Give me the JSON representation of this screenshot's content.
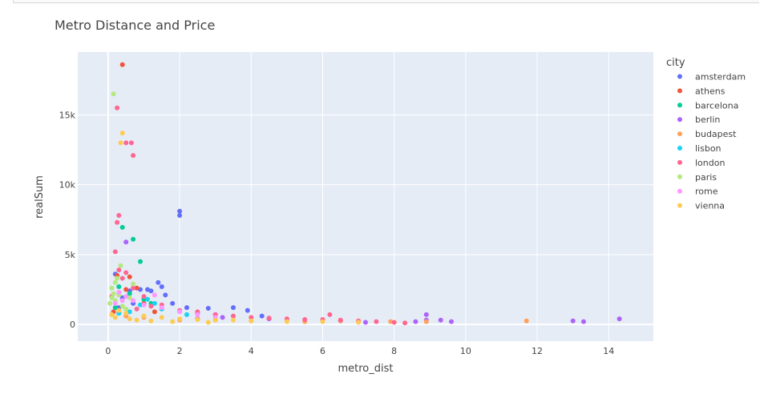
{
  "chart_data": {
    "type": "scatter",
    "title": "Metro Distance and Price",
    "xlabel": "metro_dist",
    "ylabel": "realSum",
    "xlim": [
      -0.85,
      15.25
    ],
    "ylim": [
      -1200,
      19500
    ],
    "xticks": [
      0,
      2,
      4,
      6,
      8,
      10,
      12,
      14
    ],
    "yticks": [
      0,
      5000,
      10000,
      15000
    ],
    "ytick_labels": [
      "0",
      "5k",
      "10k",
      "15k"
    ],
    "grid": true,
    "legend": {
      "title": "city",
      "position": "right"
    },
    "series": [
      {
        "name": "amsterdam",
        "color": "#636efa",
        "points": [
          [
            2.0,
            8100
          ],
          [
            2.0,
            7800
          ],
          [
            1.4,
            3000
          ],
          [
            1.5,
            2700
          ],
          [
            0.2,
            3600
          ],
          [
            0.9,
            2500
          ],
          [
            1.1,
            2500
          ],
          [
            1.2,
            2400
          ],
          [
            1.6,
            2100
          ],
          [
            1.8,
            1500
          ],
          [
            2.2,
            1200
          ],
          [
            2.8,
            1150
          ],
          [
            3.5,
            1200
          ],
          [
            3.9,
            1000
          ],
          [
            1.0,
            1800
          ],
          [
            0.7,
            1500
          ],
          [
            0.4,
            1900
          ],
          [
            0.6,
            2400
          ],
          [
            2.5,
            800
          ],
          [
            3.0,
            700
          ],
          [
            4.3,
            600
          ],
          [
            0.3,
            1200
          ]
        ]
      },
      {
        "name": "athens",
        "color": "#ef553b",
        "points": [
          [
            0.4,
            18600
          ],
          [
            0.25,
            3500
          ],
          [
            0.6,
            3400
          ],
          [
            0.8,
            2600
          ],
          [
            0.5,
            2500
          ],
          [
            1.0,
            1500
          ],
          [
            1.3,
            900
          ],
          [
            0.15,
            900
          ],
          [
            0.3,
            800
          ]
        ]
      },
      {
        "name": "barcelona",
        "color": "#00cc96",
        "points": [
          [
            0.4,
            6950
          ],
          [
            0.7,
            6100
          ],
          [
            0.9,
            4500
          ],
          [
            0.3,
            2700
          ],
          [
            0.6,
            2200
          ],
          [
            1.0,
            1800
          ],
          [
            1.2,
            1500
          ],
          [
            0.2,
            1200
          ]
        ]
      },
      {
        "name": "berlin",
        "color": "#ab63fa",
        "points": [
          [
            0.5,
            5900
          ],
          [
            14.3,
            400
          ],
          [
            13.3,
            200
          ],
          [
            13.0,
            250
          ],
          [
            9.6,
            200
          ],
          [
            9.3,
            300
          ],
          [
            8.9,
            700
          ],
          [
            8.9,
            300
          ],
          [
            8.6,
            200
          ],
          [
            7.2,
            150
          ],
          [
            6.5,
            250
          ],
          [
            2.5,
            400
          ],
          [
            3.2,
            500
          ],
          [
            4.5,
            400
          ]
        ]
      },
      {
        "name": "budapest",
        "color": "#ffa15a",
        "points": [
          [
            11.7,
            250
          ],
          [
            8.9,
            200
          ],
          [
            7.9,
            200
          ],
          [
            6.5,
            250
          ],
          [
            5.5,
            200
          ],
          [
            4.0,
            250
          ],
          [
            3.0,
            300
          ],
          [
            2.0,
            300
          ],
          [
            1.0,
            500
          ],
          [
            0.5,
            600
          ]
        ]
      },
      {
        "name": "lisbon",
        "color": "#19d3f3",
        "points": [
          [
            1.1,
            1800
          ],
          [
            1.3,
            1500
          ],
          [
            0.9,
            1400
          ],
          [
            1.5,
            1100
          ],
          [
            0.6,
            900
          ],
          [
            2.2,
            700
          ],
          [
            0.3,
            800
          ]
        ]
      },
      {
        "name": "london",
        "color": "#ff6692",
        "points": [
          [
            0.25,
            15500
          ],
          [
            0.5,
            13000
          ],
          [
            0.65,
            13000
          ],
          [
            0.7,
            12100
          ],
          [
            0.3,
            7800
          ],
          [
            0.25,
            7300
          ],
          [
            0.2,
            5200
          ],
          [
            0.3,
            3900
          ],
          [
            0.5,
            3700
          ],
          [
            0.7,
            2600
          ],
          [
            0.4,
            3300
          ],
          [
            1.0,
            2000
          ],
          [
            1.5,
            1400
          ],
          [
            2.0,
            1000
          ],
          [
            2.5,
            900
          ],
          [
            3.0,
            700
          ],
          [
            3.5,
            600
          ],
          [
            4.0,
            500
          ],
          [
            4.5,
            450
          ],
          [
            5.0,
            400
          ],
          [
            5.5,
            350
          ],
          [
            6.0,
            350
          ],
          [
            6.2,
            700
          ],
          [
            6.5,
            300
          ],
          [
            7.0,
            250
          ],
          [
            7.5,
            200
          ],
          [
            8.0,
            150
          ],
          [
            8.3,
            100
          ],
          [
            0.8,
            1100
          ],
          [
            1.2,
            1300
          ],
          [
            0.1,
            2000
          ]
        ]
      },
      {
        "name": "paris",
        "color": "#b6e880",
        "points": [
          [
            0.15,
            16500
          ],
          [
            0.35,
            4200
          ],
          [
            0.25,
            3300
          ],
          [
            0.2,
            3000
          ],
          [
            0.1,
            2600
          ],
          [
            0.15,
            2200
          ],
          [
            0.3,
            2100
          ],
          [
            0.1,
            1900
          ],
          [
            0.2,
            1700
          ],
          [
            0.05,
            1500
          ],
          [
            0.4,
            1300
          ],
          [
            0.5,
            1100
          ],
          [
            0.7,
            2900
          ],
          [
            0.6,
            1900
          ]
        ]
      },
      {
        "name": "rome",
        "color": "#ff97ff",
        "points": [
          [
            0.3,
            2300
          ],
          [
            0.5,
            2000
          ],
          [
            0.7,
            1700
          ],
          [
            1.0,
            1400
          ],
          [
            1.3,
            2100
          ],
          [
            1.5,
            1200
          ],
          [
            2.0,
            900
          ],
          [
            2.5,
            700
          ],
          [
            3.0,
            500
          ],
          [
            0.2,
            1500
          ],
          [
            0.4,
            1700
          ]
        ]
      },
      {
        "name": "vienna",
        "color": "#fecb52",
        "points": [
          [
            0.4,
            13700
          ],
          [
            0.35,
            13000
          ],
          [
            0.3,
            1000
          ],
          [
            0.5,
            800
          ],
          [
            1.0,
            600
          ],
          [
            1.5,
            500
          ],
          [
            2.0,
            400
          ],
          [
            2.5,
            350
          ],
          [
            3.0,
            300
          ],
          [
            3.5,
            300
          ],
          [
            4.0,
            250
          ],
          [
            5.0,
            200
          ],
          [
            6.0,
            200
          ],
          [
            7.0,
            150
          ],
          [
            0.1,
            700
          ],
          [
            0.2,
            500
          ],
          [
            0.6,
            400
          ],
          [
            0.8,
            300
          ],
          [
            1.2,
            250
          ],
          [
            1.8,
            200
          ],
          [
            2.8,
            150
          ]
        ]
      }
    ]
  }
}
